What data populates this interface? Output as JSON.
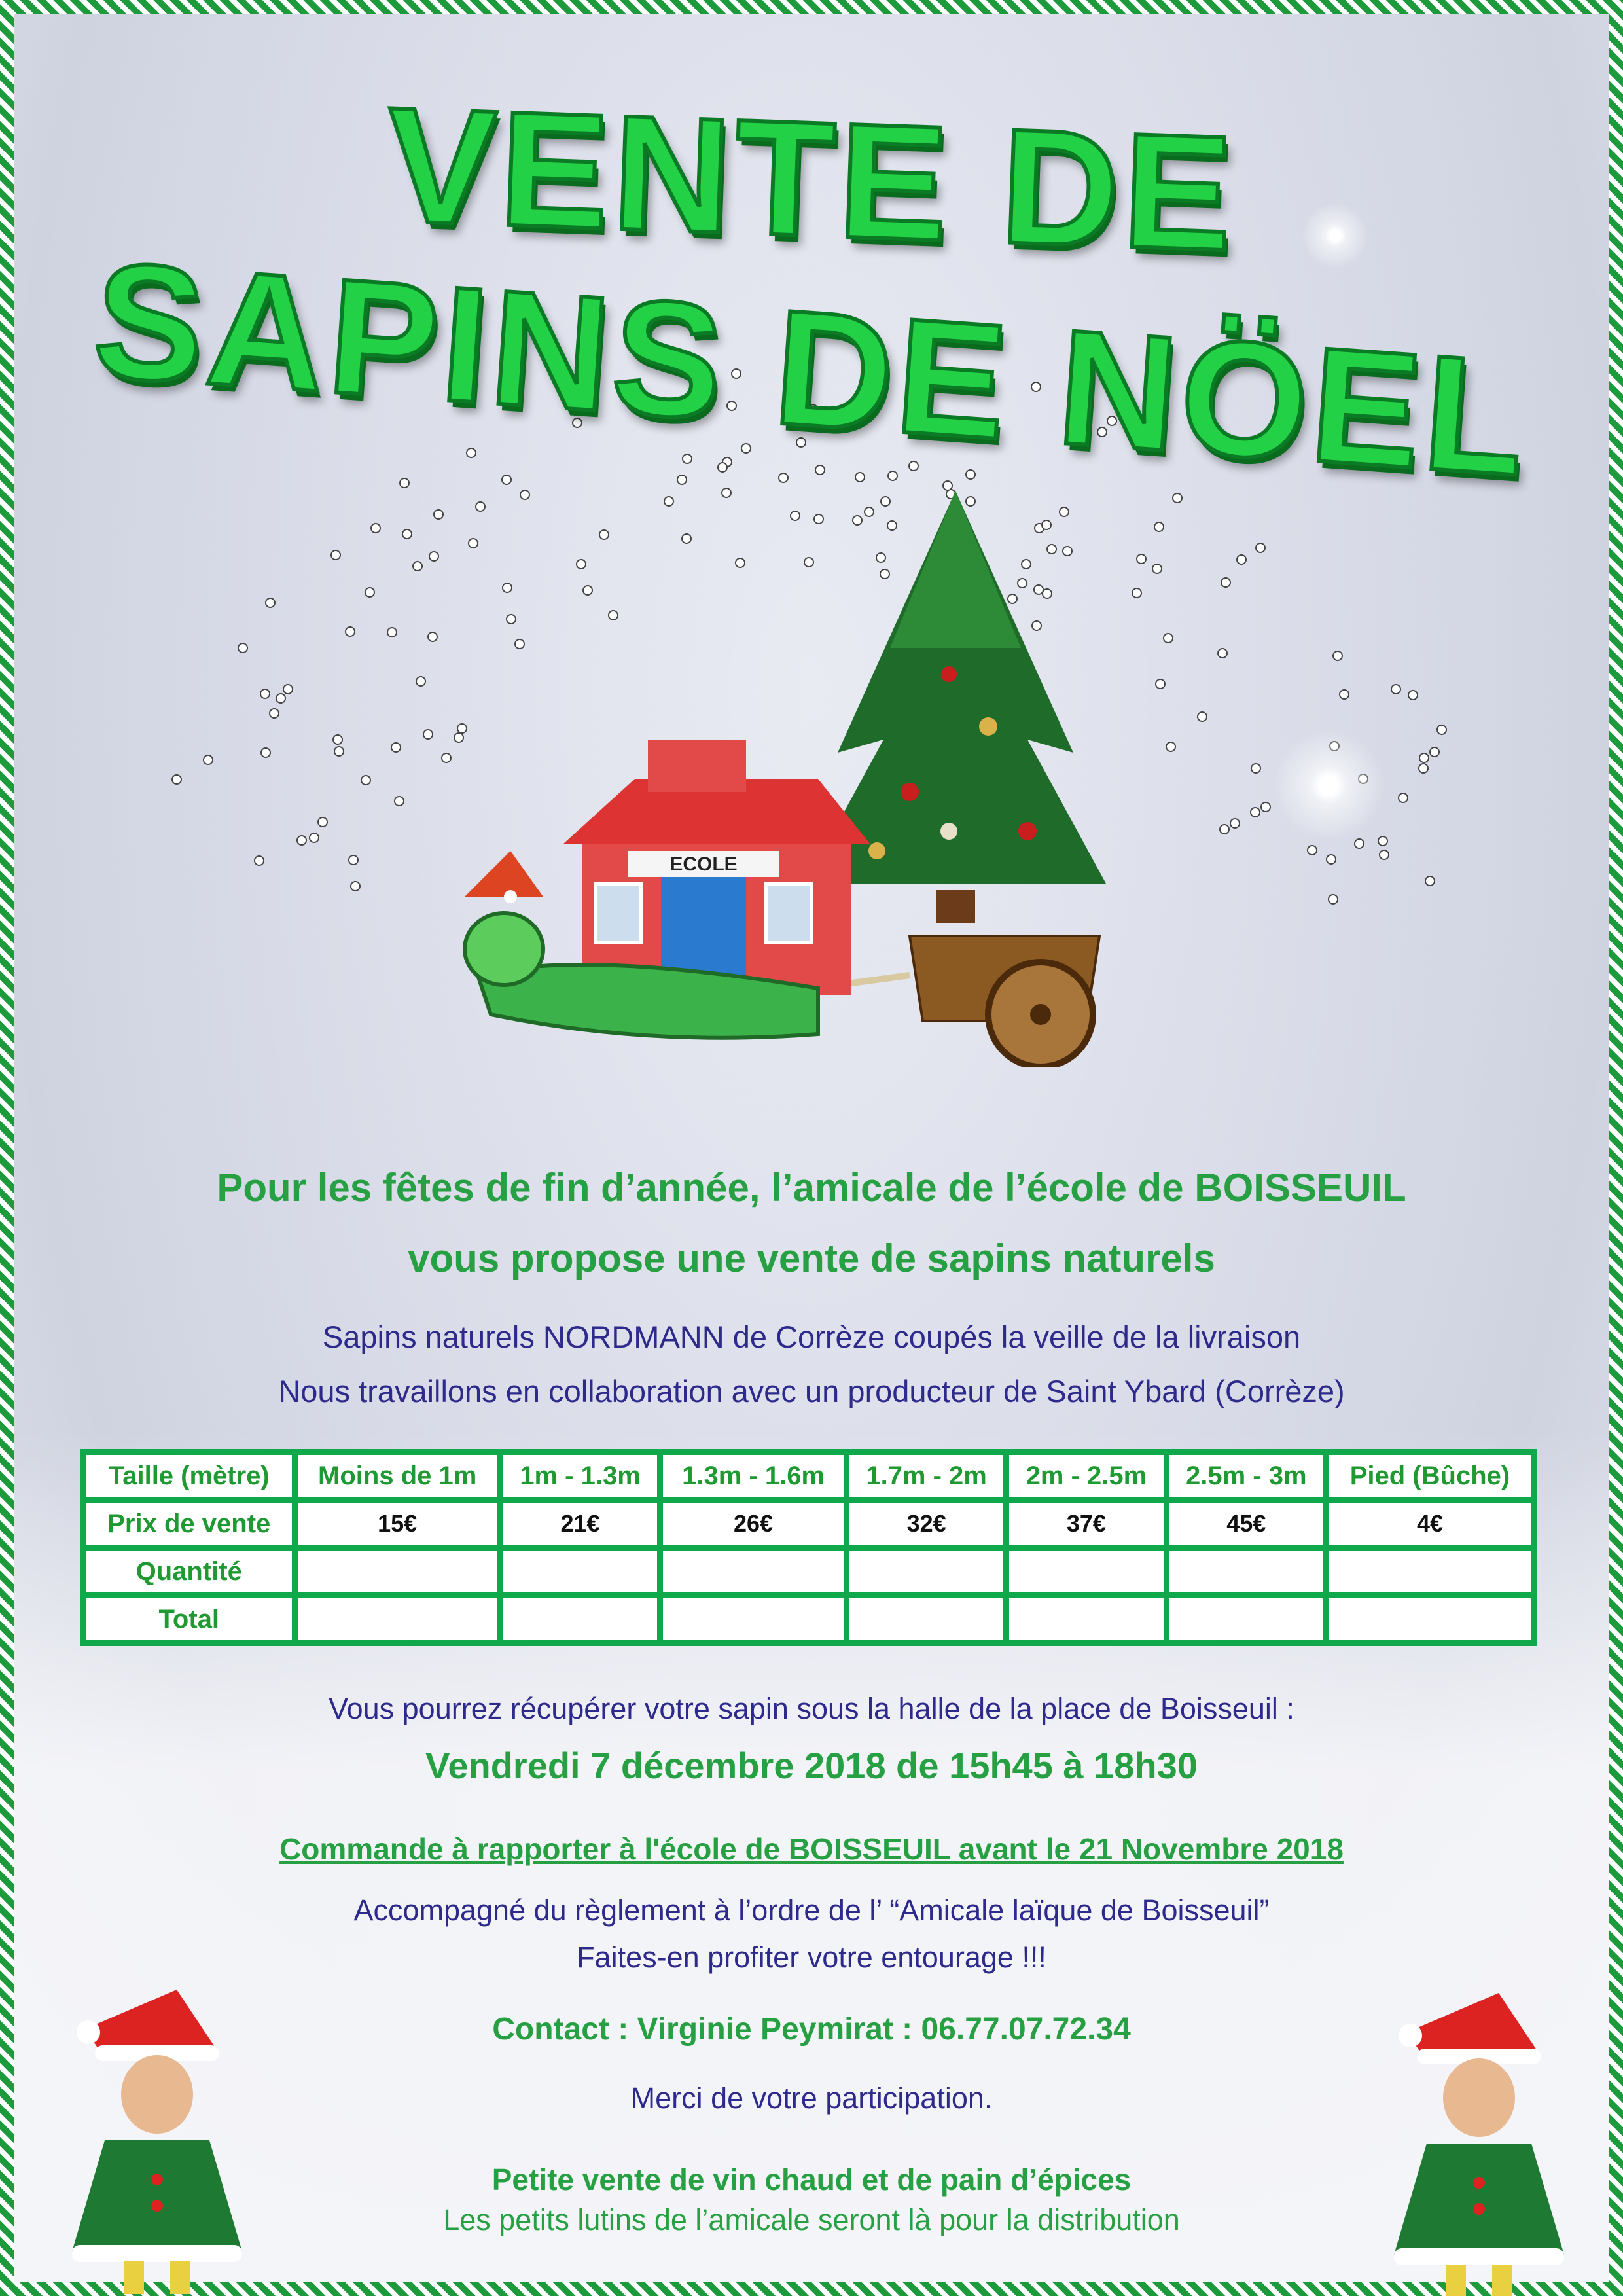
{
  "title": {
    "line1": "VENTE DE",
    "line2": "SAPINS DE NÖEL"
  },
  "illustration": {
    "school_sign": "ECOLE"
  },
  "intro": {
    "line1": "Pour les fêtes de fin d’année, l’amicale de l’école de BOISSEUIL",
    "line2": "vous propose une vente de sapins naturels"
  },
  "details": {
    "line1": "Sapins naturels NORDMANN de Corrèze coupés la veille de la livraison",
    "line2": "Nous travaillons en collaboration avec un producteur de Saint Ybard (Corrèze)"
  },
  "table": {
    "header": [
      "Taille (mètre)",
      "Moins de 1m",
      "1m - 1.3m",
      "1.3m - 1.6m",
      "1.7m - 2m",
      "2m - 2.5m",
      "2.5m - 3m",
      "Pied (Bûche)"
    ],
    "price_label": "Prix de vente",
    "prices": [
      "15€",
      "21€",
      "26€",
      "32€",
      "37€",
      "45€",
      "4€"
    ],
    "quantity_label": "Quantité",
    "total_label": "Total"
  },
  "pickup": {
    "line": "Vous pourrez récupérer votre sapin sous la halle de la place de Boisseuil :",
    "date": "Vendredi 7 décembre 2018 de 15h45 à 18h30"
  },
  "order": {
    "deadline": "Commande à rapporter à l'école de BOISSEUIL  avant le 21 Novembre 2018",
    "payment": "Accompagné du règlement à l’ordre de l’ “Amicale laïque de Boisseuil”",
    "share": "Faites-en profiter votre entourage !!!"
  },
  "contact": "Contact : Virginie Peymirat : 06.77.07.72.34",
  "thanks": "Merci de votre participation.",
  "extra": {
    "line1": "Petite vente de vin chaud et de pain d’épices",
    "line2": "Les petits lutins de l’amicale seront là pour la distribution"
  },
  "colors": {
    "green": "#26a042",
    "blue": "#2d2a8c",
    "table_border": "#0fa84a"
  }
}
